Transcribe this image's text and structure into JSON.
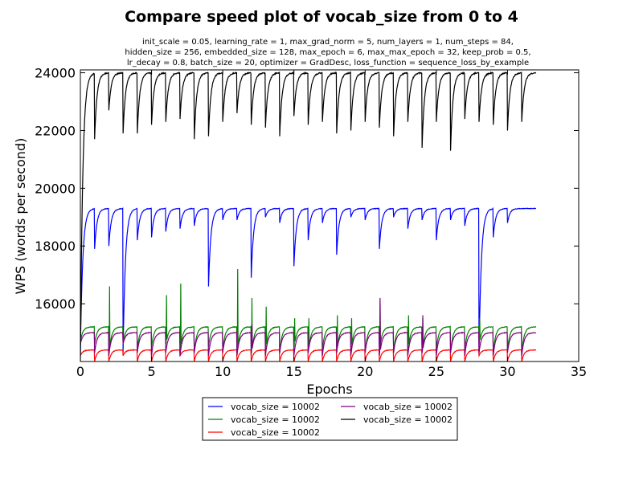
{
  "chart_data": {
    "type": "line",
    "title": "Compare speed plot of vocab_size from 0 to 4",
    "subtitle_lines": [
      "init_scale = 0.05, learning_rate = 1, max_grad_norm = 5, num_layers = 1, num_steps = 84,",
      "hidden_size = 256, embedded_size = 128, max_epoch = 6, max_max_epoch = 32, keep_prob = 0.5,",
      "lr_decay = 0.8, batch_size = 20, optimizer = GradDesc, loss_function = sequence_loss_by_example"
    ],
    "xlabel": "Epochs",
    "ylabel": "WPS (words per second)",
    "xlim": [
      0,
      35
    ],
    "ylim": [
      14000,
      24100
    ],
    "xticks": [
      0,
      5,
      10,
      15,
      20,
      25,
      30,
      35
    ],
    "yticks": [
      16000,
      18000,
      20000,
      22000,
      24000
    ],
    "legend_position": "below plot, two columns",
    "series": [
      {
        "name": "vocab_size = 10002",
        "color": "#0000ff",
        "base": 19300,
        "start": 14300,
        "end": 32,
        "restarts": [
          0,
          3,
          28,
          31.2
        ],
        "dips": [
          [
            1,
            17900
          ],
          [
            2,
            18000
          ],
          [
            4,
            18200
          ],
          [
            5,
            18300
          ],
          [
            6,
            18500
          ],
          [
            7,
            18600
          ],
          [
            8,
            18700
          ],
          [
            9,
            16600
          ],
          [
            10,
            18900
          ],
          [
            11,
            18900
          ],
          [
            12,
            16900
          ],
          [
            13,
            19000
          ],
          [
            14,
            18800
          ],
          [
            15,
            17300
          ],
          [
            16,
            18200
          ],
          [
            17,
            18800
          ],
          [
            18,
            17700
          ],
          [
            19,
            19000
          ],
          [
            20,
            18900
          ],
          [
            21,
            17900
          ],
          [
            22,
            19000
          ],
          [
            23,
            18600
          ],
          [
            24,
            18900
          ],
          [
            25,
            18200
          ],
          [
            26,
            18900
          ],
          [
            27,
            18700
          ],
          [
            29,
            18300
          ],
          [
            30,
            18800
          ]
        ]
      },
      {
        "name": "vocab_size = 10002",
        "color": "#008000",
        "base": 15200,
        "start": 14600,
        "end": 32,
        "restarts": [
          1,
          3,
          6,
          28
        ],
        "dips": [
          [
            2,
            14300
          ],
          [
            4,
            14400
          ],
          [
            5,
            14500
          ],
          [
            7,
            14400
          ],
          [
            8,
            14300
          ],
          [
            9,
            14500
          ],
          [
            10,
            14400
          ],
          [
            11,
            14300
          ],
          [
            12,
            14200
          ],
          [
            13,
            14400
          ],
          [
            14,
            14300
          ],
          [
            15,
            14500
          ],
          [
            16,
            14300
          ],
          [
            17,
            14400
          ],
          [
            18,
            14300
          ],
          [
            19,
            14400
          ],
          [
            20,
            14300
          ],
          [
            21,
            14400
          ],
          [
            22,
            14300
          ],
          [
            23,
            14400
          ],
          [
            24,
            14300
          ],
          [
            25,
            14400
          ],
          [
            26,
            14300
          ],
          [
            27,
            14400
          ],
          [
            29,
            14300
          ],
          [
            30,
            14400
          ],
          [
            31,
            14300
          ]
        ],
        "spikes": [
          [
            2,
            16600
          ],
          [
            6,
            16300
          ],
          [
            7,
            16700
          ],
          [
            11,
            17200
          ],
          [
            12,
            16200
          ],
          [
            13,
            15900
          ],
          [
            15,
            15500
          ],
          [
            16,
            15500
          ],
          [
            18,
            15600
          ],
          [
            19,
            15500
          ],
          [
            21,
            16100
          ],
          [
            23,
            15600
          ],
          [
            24,
            15500
          ],
          [
            28,
            15500
          ]
        ]
      },
      {
        "name": "vocab_size = 10002",
        "color": "#ff0000",
        "base": 14400,
        "start": 14200,
        "end": 32,
        "restarts": [
          0,
          3,
          7,
          28
        ],
        "dips": [
          [
            1,
            14000
          ],
          [
            2,
            14000
          ],
          [
            4,
            14000
          ],
          [
            5,
            14000
          ],
          [
            6,
            14000
          ],
          [
            8,
            14000
          ],
          [
            9,
            14000
          ],
          [
            10,
            14000
          ],
          [
            11,
            14000
          ],
          [
            12,
            14000
          ],
          [
            13,
            14000
          ],
          [
            14,
            14000
          ],
          [
            15,
            14000
          ],
          [
            16,
            14000
          ],
          [
            17,
            14000
          ],
          [
            18,
            14000
          ],
          [
            19,
            14000
          ],
          [
            20,
            14000
          ],
          [
            21,
            14000
          ],
          [
            22,
            14000
          ],
          [
            23,
            14000
          ],
          [
            24,
            14000
          ],
          [
            25,
            14000
          ],
          [
            26,
            14000
          ],
          [
            27,
            14000
          ],
          [
            29,
            14000
          ],
          [
            30,
            14000
          ],
          [
            31,
            14000
          ]
        ]
      },
      {
        "name": "vocab_size = 10002",
        "color": "#800080",
        "base": 15000,
        "start": 14600,
        "end": 32,
        "restarts": [
          0,
          3
        ],
        "dips": [
          [
            1,
            14300
          ],
          [
            2,
            14200
          ],
          [
            4,
            14300
          ],
          [
            5,
            14200
          ],
          [
            6,
            14300
          ],
          [
            7,
            14200
          ],
          [
            8,
            14300
          ],
          [
            9,
            14200
          ],
          [
            10,
            14300
          ],
          [
            11,
            14200
          ],
          [
            12,
            14300
          ],
          [
            13,
            14200
          ],
          [
            14,
            14300
          ],
          [
            15,
            14200
          ],
          [
            16,
            14300
          ],
          [
            17,
            14200
          ],
          [
            18,
            14300
          ],
          [
            19,
            14200
          ],
          [
            20,
            14300
          ],
          [
            21,
            14200
          ],
          [
            22,
            14300
          ],
          [
            23,
            14200
          ],
          [
            24,
            14300
          ],
          [
            25,
            14200
          ],
          [
            26,
            14300
          ],
          [
            27,
            14200
          ],
          [
            28,
            14300
          ],
          [
            29,
            14200
          ],
          [
            30,
            14300
          ],
          [
            31,
            14200
          ]
        ],
        "spikes": [
          [
            12,
            15300
          ],
          [
            21,
            16200
          ],
          [
            24,
            15600
          ]
        ]
      },
      {
        "name": "vocab_size = 10002",
        "color": "#000000",
        "base": 24000,
        "start": 14000,
        "end": 32,
        "restarts": [
          0
        ],
        "dips": [
          [
            1,
            21700
          ],
          [
            2,
            22700
          ],
          [
            3,
            21900
          ],
          [
            4,
            21900
          ],
          [
            5,
            22200
          ],
          [
            6,
            22300
          ],
          [
            7,
            22400
          ],
          [
            8,
            21700
          ],
          [
            9,
            21800
          ],
          [
            10,
            22300
          ],
          [
            11,
            22600
          ],
          [
            12,
            22200
          ],
          [
            13,
            22100
          ],
          [
            14,
            21800
          ],
          [
            15,
            22500
          ],
          [
            16,
            22200
          ],
          [
            17,
            22300
          ],
          [
            18,
            21900
          ],
          [
            19,
            22000
          ],
          [
            20,
            22300
          ],
          [
            21,
            22100
          ],
          [
            22,
            21800
          ],
          [
            23,
            22300
          ],
          [
            24,
            21400
          ],
          [
            25,
            22300
          ],
          [
            26,
            21300
          ],
          [
            27,
            22400
          ],
          [
            28,
            22300
          ],
          [
            29,
            22200
          ],
          [
            30,
            22000
          ],
          [
            31,
            22300
          ]
        ]
      }
    ]
  },
  "legend": {
    "items": [
      {
        "label": "vocab_size = 10002",
        "color": "#0000ff"
      },
      {
        "label": "vocab_size = 10002",
        "color": "#008000"
      },
      {
        "label": "vocab_size = 10002",
        "color": "#ff0000"
      },
      {
        "label": "vocab_size = 10002",
        "color": "#800080"
      },
      {
        "label": "vocab_size = 10002",
        "color": "#000000"
      }
    ]
  }
}
